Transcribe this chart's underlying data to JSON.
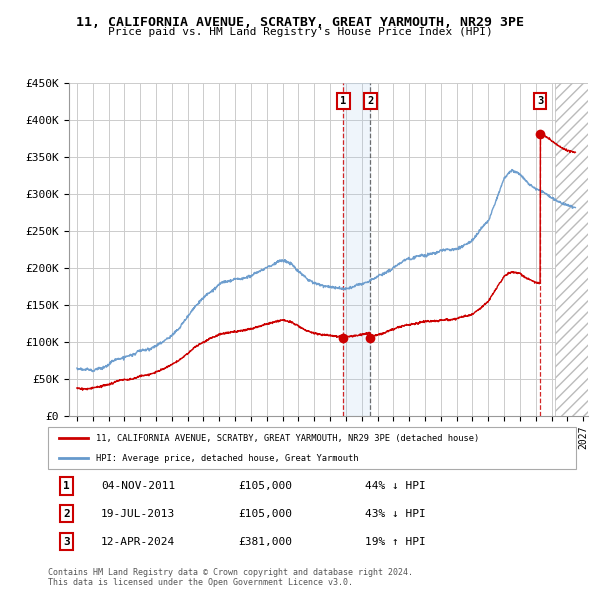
{
  "title": "11, CALIFORNIA AVENUE, SCRATBY, GREAT YARMOUTH, NR29 3PE",
  "subtitle": "Price paid vs. HM Land Registry's House Price Index (HPI)",
  "ylim": [
    0,
    450000
  ],
  "yticks": [
    0,
    50000,
    100000,
    150000,
    200000,
    250000,
    300000,
    350000,
    400000,
    450000
  ],
  "ytick_labels": [
    "£0",
    "£50K",
    "£100K",
    "£150K",
    "£200K",
    "£250K",
    "£300K",
    "£350K",
    "£400K",
    "£450K"
  ],
  "sales": [
    {
      "date": 2011.84,
      "price": 105000,
      "label": "1"
    },
    {
      "date": 2013.54,
      "price": 105000,
      "label": "2"
    },
    {
      "date": 2024.28,
      "price": 381000,
      "label": "3"
    }
  ],
  "sale_info": [
    {
      "num": "1",
      "date": "04-NOV-2011",
      "price": "£105,000",
      "hpi": "44% ↓ HPI"
    },
    {
      "num": "2",
      "date": "19-JUL-2013",
      "price": "£105,000",
      "hpi": "43% ↓ HPI"
    },
    {
      "num": "3",
      "date": "12-APR-2024",
      "price": "£381,000",
      "hpi": "19% ↑ HPI"
    }
  ],
  "legend_line1": "11, CALIFORNIA AVENUE, SCRATBY, GREAT YARMOUTH, NR29 3PE (detached house)",
  "legend_line2": "HPI: Average price, detached house, Great Yarmouth",
  "footer": "Contains HM Land Registry data © Crown copyright and database right 2024.\nThis data is licensed under the Open Government Licence v3.0.",
  "red_color": "#cc0000",
  "blue_color": "#6699cc",
  "grid_color": "#cccccc"
}
